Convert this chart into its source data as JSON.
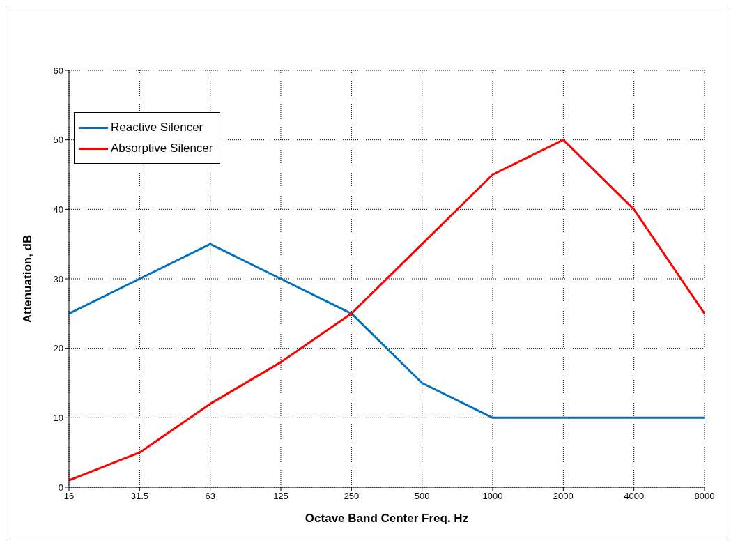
{
  "chart_data": {
    "type": "line",
    "xlabel": "Octave Band Center Freq. Hz",
    "ylabel": "Attenuation, dB",
    "categories": [
      "16",
      "31.5",
      "63",
      "125",
      "250",
      "500",
      "1000",
      "2000",
      "4000",
      "8000"
    ],
    "series": [
      {
        "name": "Reactive Silencer",
        "color": "#0070c0",
        "values": [
          25,
          30,
          35,
          30,
          25,
          15,
          10,
          10,
          10,
          10
        ]
      },
      {
        "name": "Absorptive Silencer",
        "color": "#ff0000",
        "values": [
          1,
          5,
          12,
          18,
          25,
          35,
          45,
          50,
          40,
          25
        ]
      }
    ],
    "ylim": [
      0,
      60
    ],
    "yticks": [
      0,
      10,
      20,
      30,
      40,
      50,
      60
    ],
    "grid": true,
    "legend": "top left",
    "marker": "none",
    "line_style": "solid"
  }
}
